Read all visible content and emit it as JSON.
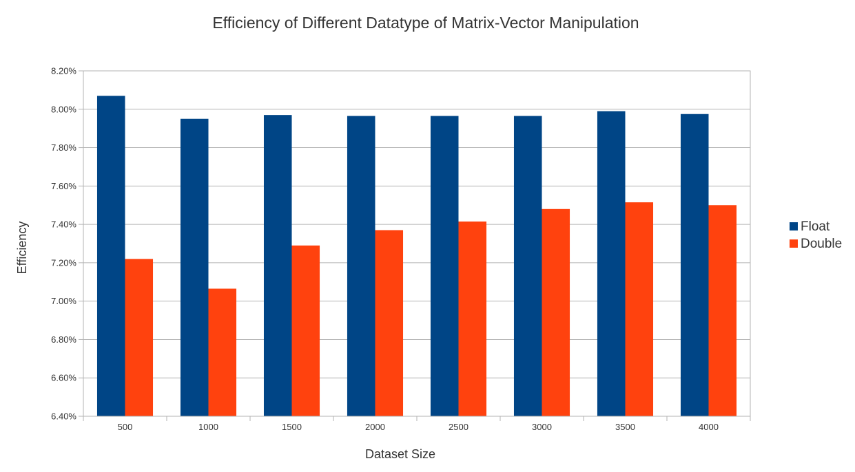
{
  "chart_data": {
    "type": "bar",
    "title": "Efficiency of Different Datatype of Matrix-Vector Manipulation",
    "xlabel": "Dataset Size",
    "ylabel": "Efficiency",
    "categories": [
      "500",
      "1000",
      "1500",
      "2000",
      "2500",
      "3000",
      "3500",
      "4000"
    ],
    "series": [
      {
        "name": "Float",
        "color": "#004586",
        "values": [
          8.07,
          7.95,
          7.97,
          7.965,
          7.965,
          7.965,
          7.99,
          7.975
        ]
      },
      {
        "name": "Double",
        "color": "#ff420e",
        "values": [
          7.22,
          7.065,
          7.29,
          7.37,
          7.415,
          7.48,
          7.515,
          7.5
        ]
      }
    ],
    "ylim": [
      6.4,
      8.2
    ],
    "y_ticks": [
      "6.40%",
      "6.60%",
      "6.80%",
      "7.00%",
      "7.20%",
      "7.40%",
      "7.60%",
      "7.80%",
      "8.00%",
      "8.20%"
    ],
    "y_tick_values": [
      6.4,
      6.6,
      6.8,
      7.0,
      7.2,
      7.4,
      7.6,
      7.8,
      8.0,
      8.2
    ],
    "grid": true,
    "legend_position": "right"
  }
}
